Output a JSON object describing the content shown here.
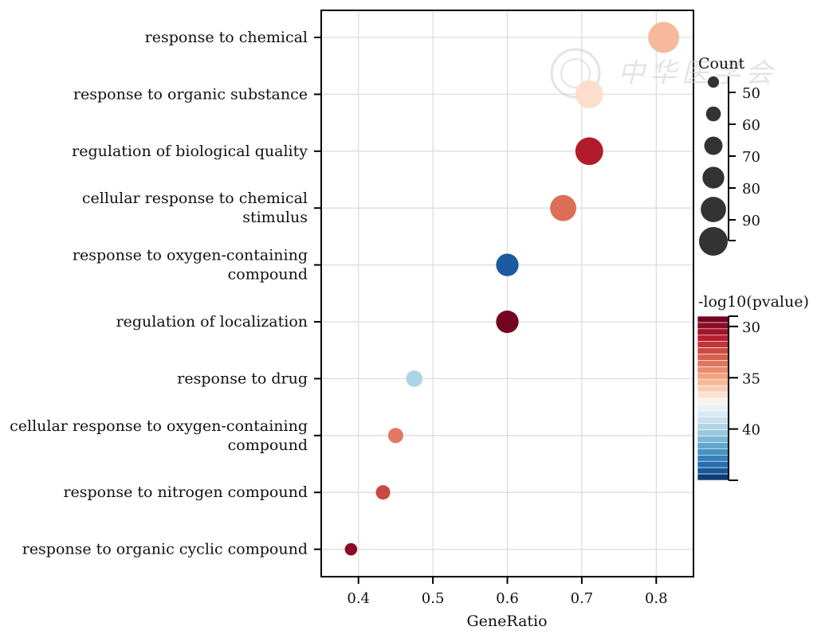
{
  "chart_data": {
    "type": "scatter",
    "xlabel": "GeneRatio",
    "ylabel": "",
    "xlim": [
      0.35,
      0.85
    ],
    "xticks": [
      0.4,
      0.5,
      0.6,
      0.7,
      0.8
    ],
    "xtick_labels": [
      "0.4",
      "0.5",
      "0.6",
      "0.7",
      "0.8"
    ],
    "grid": true,
    "terms": [
      {
        "label_lines": [
          "response to chemical"
        ],
        "gene_ratio": 0.81,
        "count": 94,
        "neg_log10_pvalue": 35.5
      },
      {
        "label_lines": [
          "response to organic substance"
        ],
        "gene_ratio": 0.71,
        "count": 86,
        "neg_log10_pvalue": 36.6
      },
      {
        "label_lines": [
          "regulation of biological quality"
        ],
        "gene_ratio": 0.71,
        "count": 86,
        "neg_log10_pvalue": 31.0
      },
      {
        "label_lines": [
          "cellular response to chemical",
          "stimulus"
        ],
        "gene_ratio": 0.675,
        "count": 82,
        "neg_log10_pvalue": 33.4
      },
      {
        "label_lines": [
          "response to oxygen-containing",
          "compound"
        ],
        "gene_ratio": 0.6,
        "count": 73,
        "neg_log10_pvalue": 44.0
      },
      {
        "label_lines": [
          "regulation of localization"
        ],
        "gene_ratio": 0.6,
        "count": 73,
        "neg_log10_pvalue": 29.3
      },
      {
        "label_lines": [
          "response to drug"
        ],
        "gene_ratio": 0.475,
        "count": 58,
        "neg_log10_pvalue": 39.8
      },
      {
        "label_lines": [
          "cellular response to oxygen-containing",
          "compound"
        ],
        "gene_ratio": 0.45,
        "count": 55,
        "neg_log10_pvalue": 33.7
      },
      {
        "label_lines": [
          "response to nitrogen compound"
        ],
        "gene_ratio": 0.433,
        "count": 53,
        "neg_log10_pvalue": 32.3
      },
      {
        "label_lines": [
          "response to organic cyclic compound"
        ],
        "gene_ratio": 0.39,
        "count": 48,
        "neg_log10_pvalue": 29.9
      }
    ],
    "size_legend": {
      "title": "Count",
      "values": [
        50,
        60,
        70,
        80,
        90
      ],
      "labels": [
        "50",
        "60",
        "70",
        "80",
        "90"
      ],
      "range": [
        45,
        100
      ]
    },
    "color_legend": {
      "title": "-log10(pvalue)",
      "ticks": [
        30,
        35,
        40
      ],
      "labels": [
        "30",
        "35",
        "40"
      ],
      "range": [
        29,
        45
      ],
      "low_color": "#67001f",
      "mid_color": "#f7f7f7",
      "high_color": "#053061",
      "colormap": "RdBu"
    },
    "watermark": "中华医学会"
  }
}
